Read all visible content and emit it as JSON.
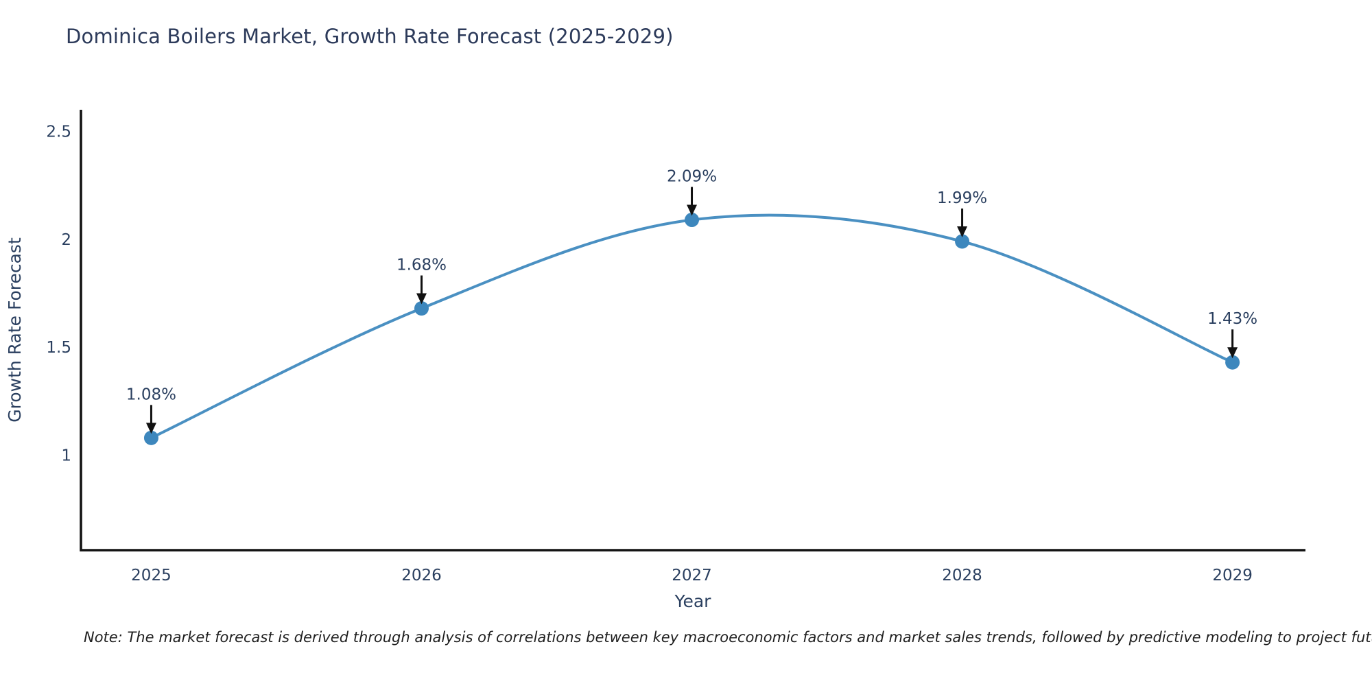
{
  "chart_data": {
    "type": "line",
    "title": "Dominica Boilers Market, Growth Rate Forecast (2025-2029)",
    "xlabel": "Year",
    "ylabel": "Growth Rate Forecast",
    "x": [
      2025,
      2026,
      2027,
      2028,
      2029
    ],
    "values": [
      1.08,
      1.68,
      2.09,
      1.99,
      1.43
    ],
    "point_labels": [
      "1.08%",
      "1.68%",
      "2.09%",
      "1.99%",
      "1.43%"
    ],
    "x_tick_labels": [
      "2025",
      "2026",
      "2027",
      "2028",
      "2029"
    ],
    "y_ticks": [
      {
        "value": 1,
        "label": "1"
      },
      {
        "value": 1.5,
        "label": "1.5"
      },
      {
        "value": 2,
        "label": "2"
      },
      {
        "value": 2.5,
        "label": "2.5"
      }
    ],
    "x_range": [
      2024.74,
      2029.27
    ],
    "y_range": [
      0.56,
      2.6
    ],
    "line_style": "spline",
    "grid": "off",
    "legend_position": "none",
    "colors": {
      "line": "#4a90c2",
      "marker": "#3d87bd",
      "axis": "#141414",
      "text": "#2a3f5f",
      "arrow": "#111111",
      "title": "#2c3a5a"
    }
  },
  "note": "Note: The market forecast is derived through analysis of correlations between key macroeconomic factors and market sales trends, followed by predictive modeling to project future sales"
}
